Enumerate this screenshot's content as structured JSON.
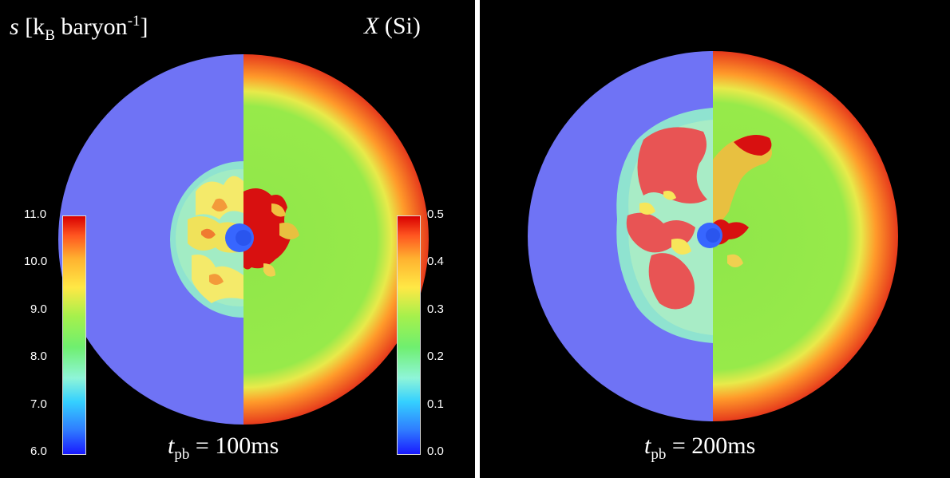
{
  "left_panel": {
    "title_left": {
      "var": "s",
      "bracket_open": "[k",
      "sub": "B",
      "unit": " baryon",
      "sup": "-1",
      "bracket_close": "]"
    },
    "title_right": {
      "var": "X",
      "rest": " (Si)"
    },
    "time": {
      "var": "t",
      "sub": "pb",
      "value": " = 100ms"
    },
    "colorbar_left_ticks": [
      "11.0",
      "10.0",
      "9.0",
      "8.0",
      "7.0",
      "6.0"
    ],
    "colorbar_right_ticks": [
      "0.5",
      "0.4",
      "0.3",
      "0.2",
      "0.1",
      "0.0"
    ]
  },
  "right_panel": {
    "time": {
      "var": "t",
      "sub": "pb",
      "value": " = 200ms"
    }
  },
  "colors": {
    "background": "#000000",
    "entropy_base": "#6f73f5",
    "si_outer": "#e63a1c",
    "si_inner": "#8fe64a",
    "plume_red": "#e85454",
    "plume_yellow": "#f7e65a",
    "core_blue": "#3766ff"
  }
}
